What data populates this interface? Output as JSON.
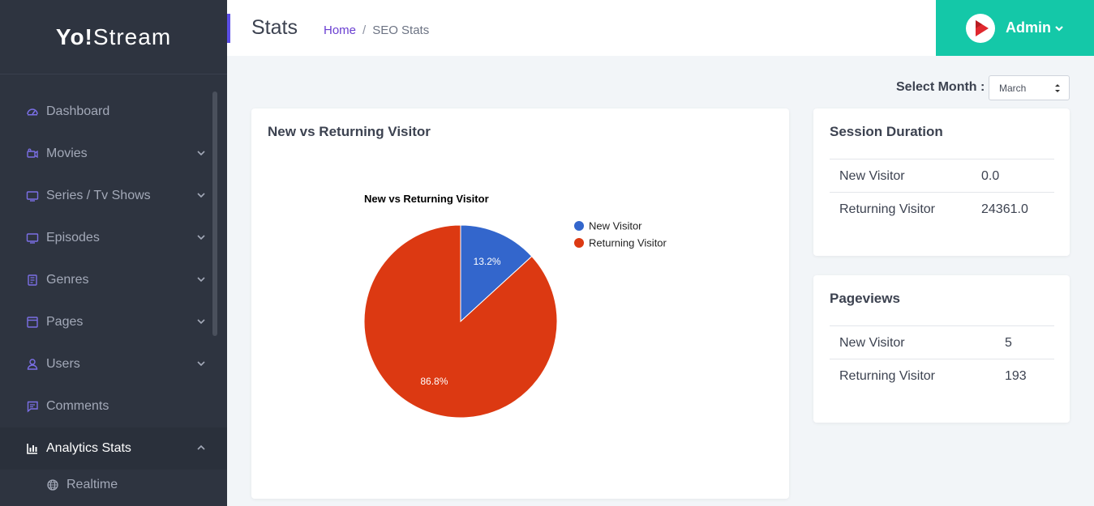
{
  "brand": {
    "logo_bold": "Yo!",
    "logo_rest": "Stream"
  },
  "sidebar": {
    "items": [
      {
        "label": "Dashboard",
        "icon": "dashboard-icon",
        "chevron": null
      },
      {
        "label": "Movies",
        "icon": "camera-icon",
        "chevron": "down"
      },
      {
        "label": "Series / Tv Shows",
        "icon": "tv-icon",
        "chevron": "down"
      },
      {
        "label": "Episodes",
        "icon": "tv-icon",
        "chevron": "down"
      },
      {
        "label": "Genres",
        "icon": "book-icon",
        "chevron": "down"
      },
      {
        "label": "Pages",
        "icon": "page-icon",
        "chevron": "down"
      },
      {
        "label": "Users",
        "icon": "user-icon",
        "chevron": "down"
      },
      {
        "label": "Comments",
        "icon": "comment-icon",
        "chevron": null
      },
      {
        "label": "Analytics Stats",
        "icon": "bar-chart-icon",
        "chevron": "up",
        "active": true
      }
    ],
    "subitems": [
      {
        "label": "Realtime",
        "icon": "globe-icon"
      }
    ]
  },
  "header": {
    "title": "Stats",
    "breadcrumb": {
      "home": "Home",
      "separator": "/",
      "current": "SEO Stats"
    },
    "user": "Admin"
  },
  "month_select": {
    "label": "Select Month :",
    "value": "March"
  },
  "chart_card": {
    "title": "New vs Returning Visitor"
  },
  "chart_data": {
    "type": "pie",
    "title": "New vs Returning Visitor",
    "labels": [
      "New Visitor",
      "Returning Visitor"
    ],
    "values": [
      13.2,
      86.8
    ],
    "value_labels": [
      "13.2%",
      "86.8%"
    ],
    "colors": [
      "#3366cc",
      "#dc3912"
    ],
    "legend_position": "right"
  },
  "session_duration": {
    "title": "Session Duration",
    "rows": [
      {
        "label": "New Visitor",
        "value": "0.0"
      },
      {
        "label": "Returning Visitor",
        "value": "24361.0"
      }
    ]
  },
  "pageviews": {
    "title": "Pageviews",
    "rows": [
      {
        "label": "New Visitor",
        "value": "5"
      },
      {
        "label": "Returning Visitor",
        "value": "193"
      }
    ]
  },
  "colors": {
    "sidebar": "#2e3440",
    "accent": "#14c8a8",
    "purple": "#5b4ee6"
  }
}
